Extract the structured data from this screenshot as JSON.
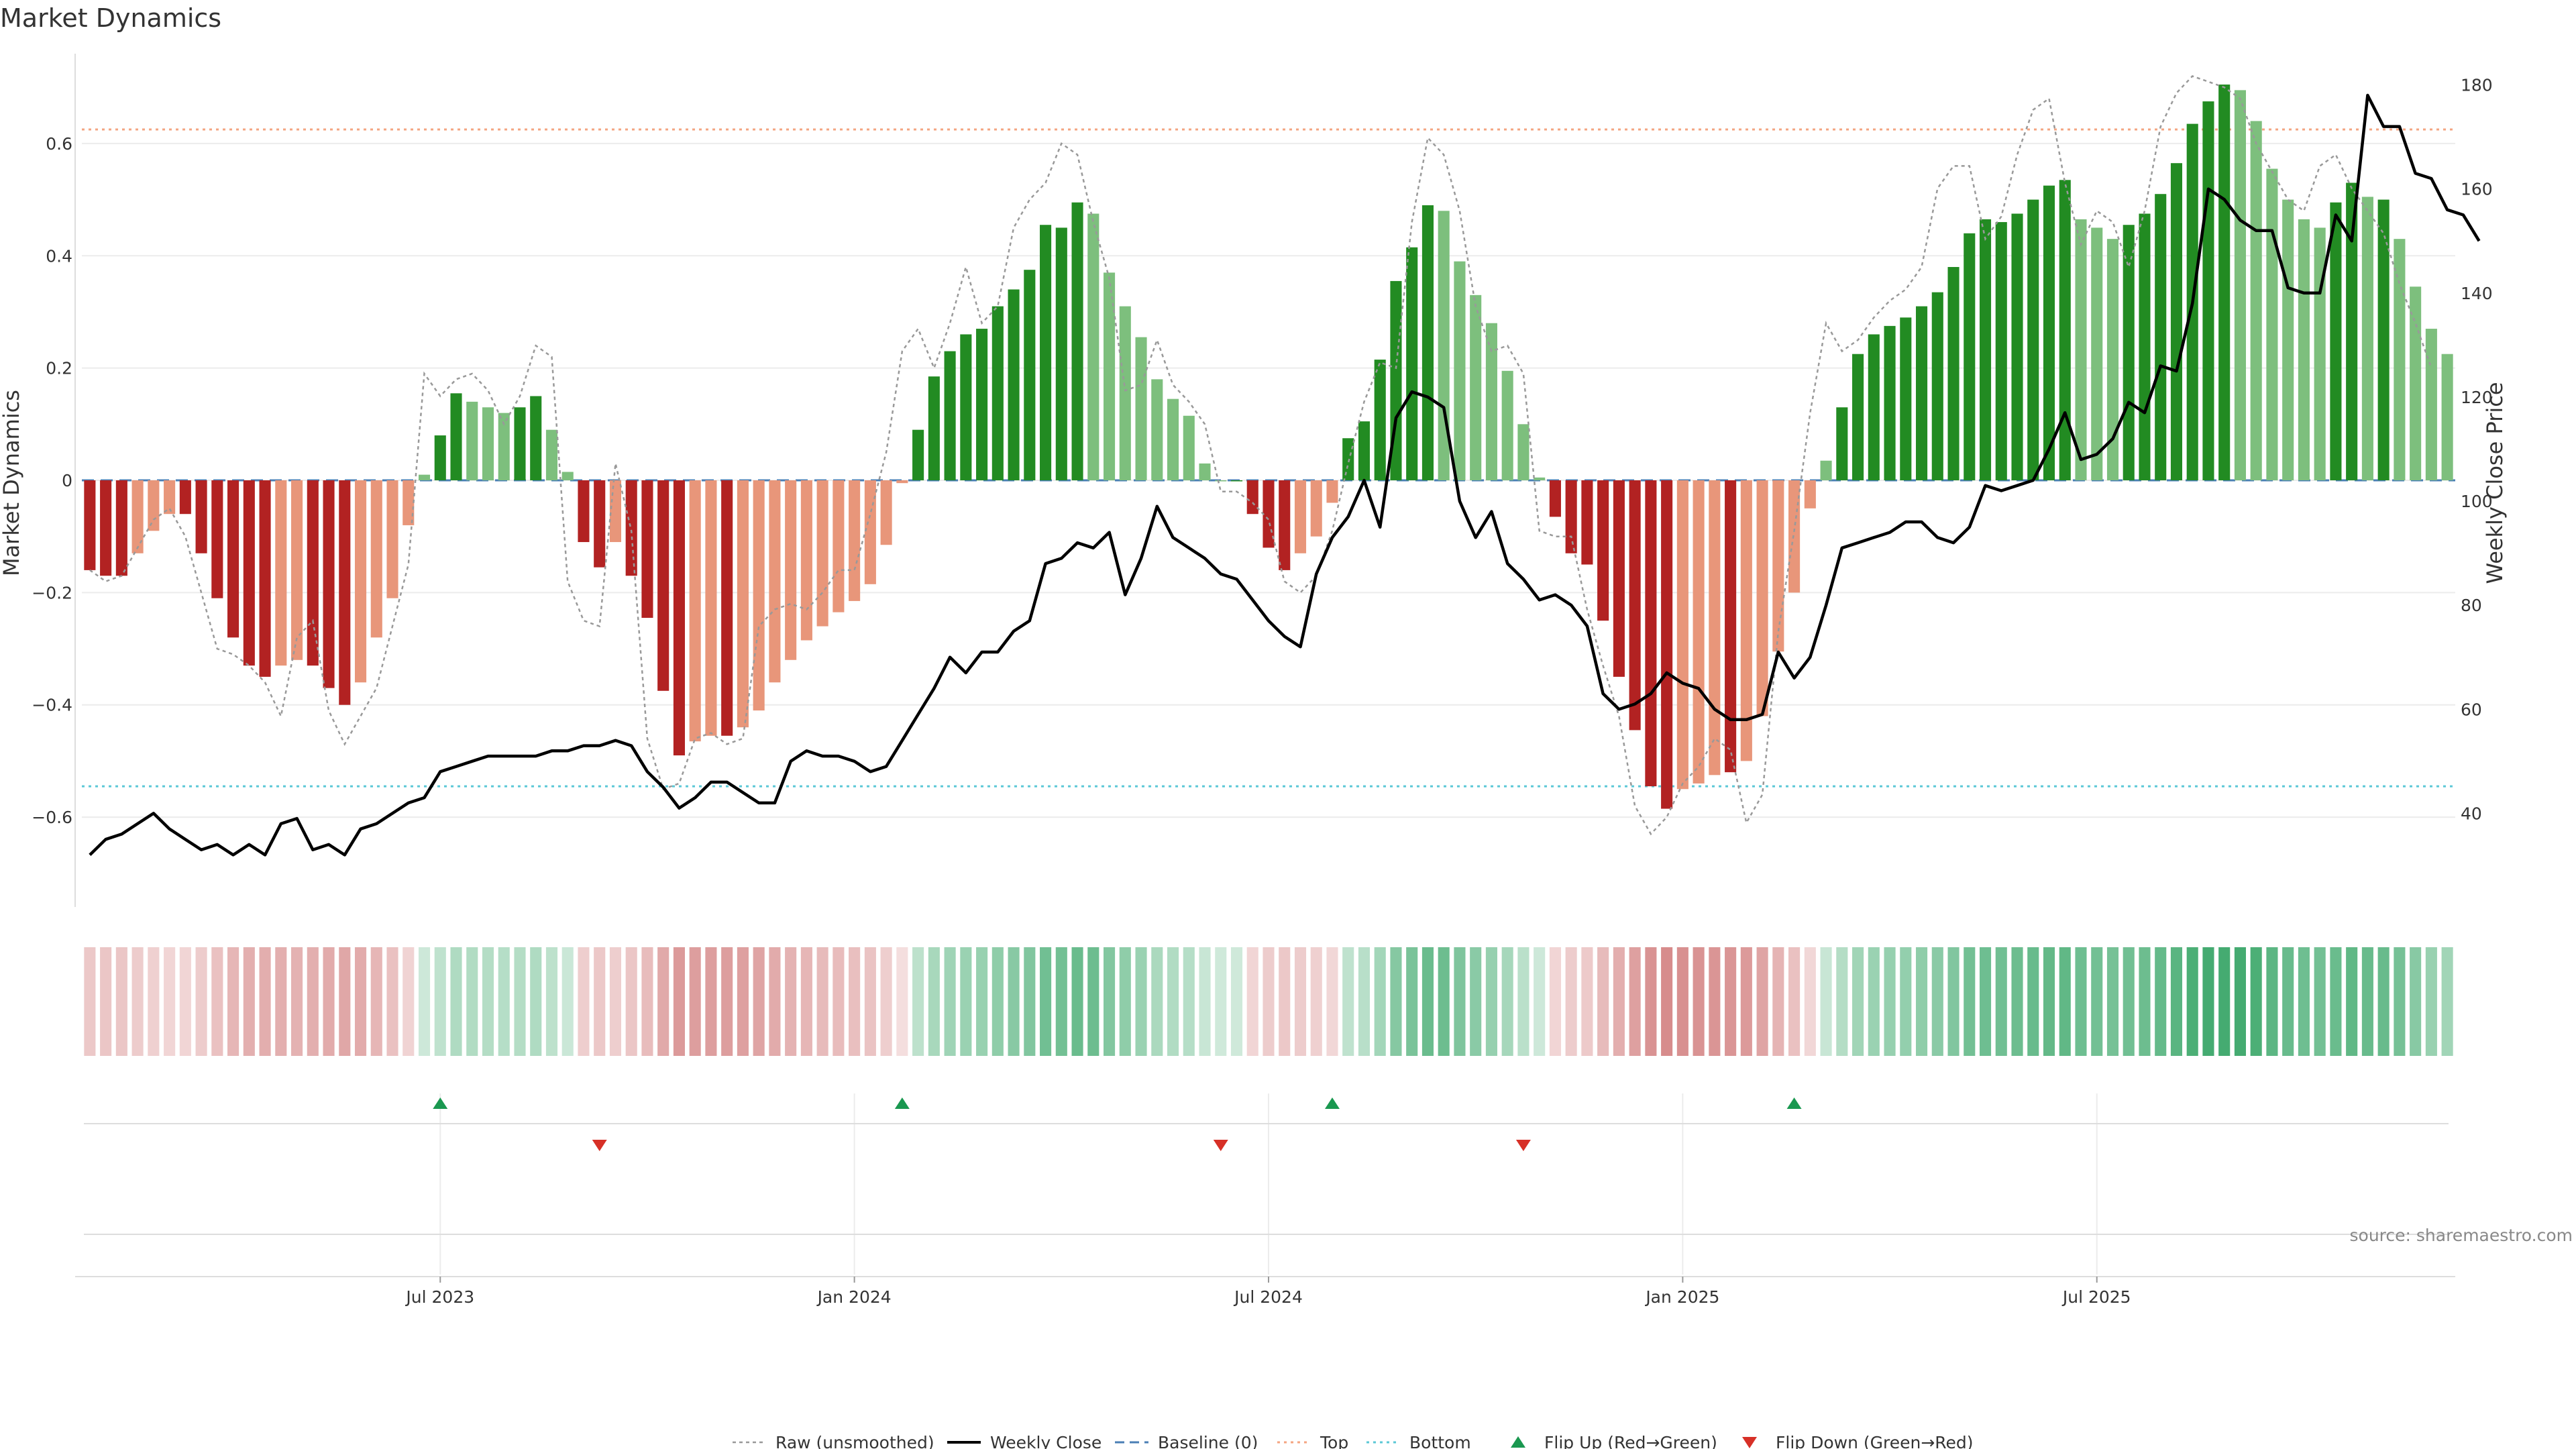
{
  "chart_data": {
    "type": "bar",
    "title": "Market Dynamics",
    "ylabel_left": "Market Dynamics",
    "ylabel_right": "Weekly Close Price",
    "source": "source: sharemaestro.com",
    "ylim_left": [
      -0.76,
      0.76
    ],
    "ylim_right": [
      22,
      186
    ],
    "left_ticks": [
      {
        "v": 0.6,
        "label": "0.6"
      },
      {
        "v": 0.4,
        "label": "0.4"
      },
      {
        "v": 0.2,
        "label": "0.2"
      },
      {
        "v": 0,
        "label": "0"
      },
      {
        "v": -0.2,
        "label": "−0.2"
      },
      {
        "v": -0.4,
        "label": "−0.4"
      },
      {
        "v": -0.6,
        "label": "−0.6"
      }
    ],
    "right_ticks": [
      {
        "v": 180,
        "label": "180"
      },
      {
        "v": 160,
        "label": "160"
      },
      {
        "v": 140,
        "label": "140"
      },
      {
        "v": 120,
        "label": "120"
      },
      {
        "v": 100,
        "label": "100"
      },
      {
        "v": 80,
        "label": "80"
      },
      {
        "v": 60,
        "label": "60"
      },
      {
        "v": 40,
        "label": "40"
      }
    ],
    "x_ticks": [
      {
        "week": 22,
        "label": "Jul 2023"
      },
      {
        "week": 48,
        "label": "Jan 2024"
      },
      {
        "week": 74,
        "label": "Jul 2024"
      },
      {
        "week": 100,
        "label": "Jan 2025"
      },
      {
        "week": 126,
        "label": "Jul 2025"
      }
    ],
    "reference_lines": {
      "top": 0.625,
      "bottom": -0.545,
      "baseline": 0
    },
    "colors": {
      "red_strong": "#b22222",
      "red_light": "#e8967a",
      "green_strong": "#228b22",
      "green_light": "#7dbf7d",
      "line": "#000000",
      "raw": "#999999",
      "top": "#f4a582",
      "bottom": "#5bc8d6",
      "baseline": "#4a7fb5",
      "flip_up": "#1a9850",
      "flip_down": "#d73027"
    },
    "market_dynamics": [
      -0.16,
      -0.17,
      -0.17,
      -0.13,
      -0.09,
      -0.06,
      -0.06,
      -0.13,
      -0.21,
      -0.28,
      -0.33,
      -0.35,
      -0.33,
      -0.32,
      -0.33,
      -0.37,
      -0.4,
      -0.36,
      -0.28,
      -0.21,
      -0.08,
      0.01,
      0.08,
      0.155,
      0.14,
      0.13,
      0.12,
      0.13,
      0.15,
      0.09,
      0.015,
      -0.11,
      -0.155,
      -0.11,
      -0.17,
      -0.245,
      -0.375,
      -0.49,
      -0.465,
      -0.455,
      -0.455,
      -0.44,
      -0.41,
      -0.36,
      -0.32,
      -0.285,
      -0.26,
      -0.235,
      -0.215,
      -0.185,
      -0.115,
      -0.005,
      0.09,
      0.185,
      0.23,
      0.26,
      0.27,
      0.31,
      0.34,
      0.375,
      0.455,
      0.45,
      0.495,
      0.475,
      0.37,
      0.31,
      0.255,
      0.18,
      0.145,
      0.115,
      0.03,
      0,
      0.0,
      -0.06,
      -0.12,
      -0.16,
      -0.13,
      -0.1,
      -0.04,
      0.075,
      0.105,
      0.215,
      0.355,
      0.415,
      0.49,
      0.48,
      0.39,
      0.33,
      0.28,
      0.195,
      0.1,
      0.005,
      -0.065,
      -0.13,
      -0.15,
      -0.25,
      -0.35,
      -0.445,
      -0.545,
      -0.585,
      -0.55,
      -0.54,
      -0.525,
      -0.52,
      -0.5,
      -0.42,
      -0.305,
      -0.2,
      -0.05,
      0.035,
      0.13,
      0.225,
      0.26,
      0.275,
      0.29,
      0.31,
      0.335,
      0.38,
      0.44,
      0.465,
      0.46,
      0.475,
      0.5,
      0.525,
      0.535,
      0.465,
      0.45,
      0.43,
      0.455,
      0.475,
      0.51,
      0.565,
      0.635,
      0.675,
      0.705,
      0.695,
      0.64,
      0.555,
      0.5,
      0.465,
      0.45,
      0.495,
      0.53,
      0.505,
      0.5,
      0.43,
      0.345,
      0.27,
      0.225
    ],
    "weekly_close": [
      32,
      35,
      36,
      38,
      40,
      37,
      35,
      33,
      34,
      32,
      34,
      32,
      38,
      39,
      33,
      34,
      32,
      37,
      38,
      40,
      42,
      43,
      48,
      49,
      50,
      51,
      51,
      51,
      51,
      52,
      52,
      53,
      53,
      54,
      53,
      48,
      45,
      41,
      43,
      46,
      46,
      44,
      42,
      42,
      50,
      52,
      51,
      51,
      50,
      48,
      49,
      54,
      59,
      64,
      70,
      67,
      71,
      71,
      75,
      77,
      88,
      89,
      92,
      91,
      94,
      82,
      89,
      99,
      93,
      91,
      89,
      86,
      85,
      81,
      77,
      74,
      72,
      86,
      93,
      97,
      104,
      95,
      116,
      121,
      120,
      118,
      100,
      93,
      98,
      88,
      85,
      81,
      82,
      80,
      76,
      63,
      60,
      61,
      63,
      67,
      65,
      64,
      60,
      58,
      58,
      59,
      71,
      66,
      70,
      80,
      91,
      92,
      93,
      94,
      96,
      96,
      93,
      92,
      95,
      103,
      102,
      103,
      104,
      110,
      117,
      108,
      109,
      112,
      119,
      117,
      126,
      125,
      138,
      160,
      158,
      154,
      152,
      152,
      141,
      140,
      140,
      155,
      150,
      178,
      172,
      172,
      163,
      162,
      156,
      155,
      150
    ],
    "raw_unsmoothed": [
      -0.16,
      -0.18,
      -0.17,
      -0.12,
      -0.07,
      -0.05,
      -0.1,
      -0.2,
      -0.3,
      -0.31,
      -0.33,
      -0.36,
      -0.42,
      -0.28,
      -0.25,
      -0.41,
      -0.47,
      -0.42,
      -0.37,
      -0.26,
      -0.15,
      0.19,
      0.15,
      0.18,
      0.19,
      0.16,
      0.1,
      0.15,
      0.24,
      0.22,
      -0.18,
      -0.25,
      -0.26,
      0.03,
      -0.09,
      -0.46,
      -0.55,
      -0.54,
      -0.46,
      -0.45,
      -0.47,
      -0.46,
      -0.26,
      -0.23,
      -0.22,
      -0.23,
      -0.2,
      -0.16,
      -0.16,
      -0.06,
      0.05,
      0.23,
      0.27,
      0.2,
      0.28,
      0.38,
      0.28,
      0.31,
      0.45,
      0.5,
      0.53,
      0.6,
      0.58,
      0.46,
      0.36,
      0.16,
      0.17,
      0.25,
      0.17,
      0.14,
      0.1,
      -0.02,
      -0.02,
      -0.04,
      -0.07,
      -0.18,
      -0.2,
      -0.17,
      -0.09,
      0.03,
      0.14,
      0.21,
      0.2,
      0.46,
      0.61,
      0.58,
      0.48,
      0.31,
      0.23,
      0.24,
      0.19,
      -0.09,
      -0.1,
      -0.1,
      -0.23,
      -0.33,
      -0.42,
      -0.58,
      -0.63,
      -0.6,
      -0.54,
      -0.51,
      -0.46,
      -0.48,
      -0.61,
      -0.56,
      -0.27,
      -0.09,
      0.12,
      0.28,
      0.23,
      0.25,
      0.29,
      0.32,
      0.34,
      0.38,
      0.52,
      0.56,
      0.56,
      0.43,
      0.47,
      0.58,
      0.66,
      0.68,
      0.53,
      0.42,
      0.48,
      0.46,
      0.38,
      0.48,
      0.63,
      0.69,
      0.72,
      0.71,
      0.7,
      0.68,
      0.6,
      0.55,
      0.5,
      0.48,
      0.56,
      0.58,
      0.52,
      0.48,
      0.44,
      0.35,
      0.28,
      0.2
    ],
    "heat_strip": {
      "red_shades": [
        0.3,
        0.3,
        0.3,
        0.3,
        0.3,
        0.3,
        0.3,
        0.3,
        0.38,
        0.38,
        0.48,
        0.48,
        0.48,
        0.48,
        0.48,
        0.48,
        0.48,
        0.48,
        0.48,
        0.48,
        0.48,
        0.22,
        0.22,
        0.22,
        0.22,
        0.22,
        0.22,
        0.22,
        0.22,
        0.22,
        0.22,
        0.35,
        0.35,
        0.35,
        0.35,
        0.35,
        0.45,
        0.6,
        0.6,
        0.6,
        0.6,
        0.6,
        0.55,
        0.55,
        0.5,
        0.45,
        0.4,
        0.4,
        0.35,
        0.35,
        0.3
      ],
      "notes": "cell shading follows market dynamics sign and magnitude"
    },
    "flips": {
      "up": [
        22,
        51,
        78,
        107
      ],
      "down": [
        32,
        71,
        90
      ]
    },
    "legend": [
      {
        "label": "Raw (unsmoothed)",
        "kind": "dotted"
      },
      {
        "label": "Weekly Close",
        "kind": "solid"
      },
      {
        "label": "Baseline (0)",
        "kind": "dashed"
      },
      {
        "label": "Top",
        "kind": "dotted-orange"
      },
      {
        "label": "Bottom",
        "kind": "dotted-cyan"
      },
      {
        "label": "Flip Up (Red→Green)",
        "kind": "tri-up"
      },
      {
        "label": "Flip Down (Green→Red)",
        "kind": "tri-down"
      }
    ]
  }
}
